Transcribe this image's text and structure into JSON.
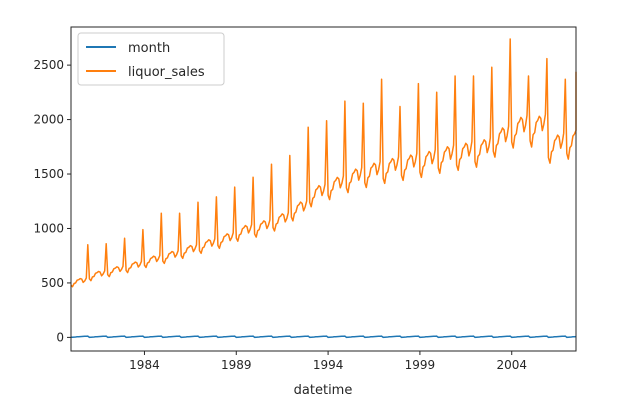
{
  "chart_data": {
    "type": "line",
    "xlabel": "datetime",
    "ylabel": "",
    "title": "",
    "xlim": [
      1980.0,
      2007.5
    ],
    "ylim": [
      -125,
      2850
    ],
    "x_ticks": [
      1984,
      1989,
      1994,
      1999,
      2004
    ],
    "x_tick_labels": [
      "1984",
      "1989",
      "1994",
      "1999",
      "2004"
    ],
    "y_ticks": [
      0,
      500,
      1000,
      1500,
      2000,
      2500
    ],
    "y_tick_labels": [
      "0",
      "500",
      "1000",
      "1500",
      "2000",
      "2500"
    ],
    "legend": {
      "position": "top-left"
    },
    "grid": false,
    "series": [
      {
        "name": "month",
        "color": "#1f77b4",
        "x_start": 1980.0,
        "x_step": 0.08333,
        "values_pattern": [
          1,
          2,
          3,
          4,
          5,
          6,
          7,
          8,
          9,
          10,
          11,
          12
        ]
      },
      {
        "name": "liquor_sales",
        "color": "#ff7f0e",
        "x_start": 1980.0,
        "x_step": 0.08333,
        "yearly_base": [
          500,
          560,
          600,
          640,
          690,
          730,
          780,
          830,
          880,
          950,
          990,
          1050,
          1150,
          1290,
          1360,
          1430,
          1480,
          1520,
          1550,
          1580,
          1620,
          1650,
          1680,
          1780,
          1870,
          1880,
          1720,
          1760
        ],
        "yearly_peak": [
          850,
          860,
          910,
          990,
          1140,
          1140,
          1240,
          1290,
          1380,
          1470,
          1590,
          1670,
          1930,
          1990,
          2170,
          2150,
          2370,
          2120,
          2330,
          2250,
          2400,
          2400,
          2480,
          2740,
          2400,
          2560,
          2370,
          2440
        ]
      }
    ]
  }
}
